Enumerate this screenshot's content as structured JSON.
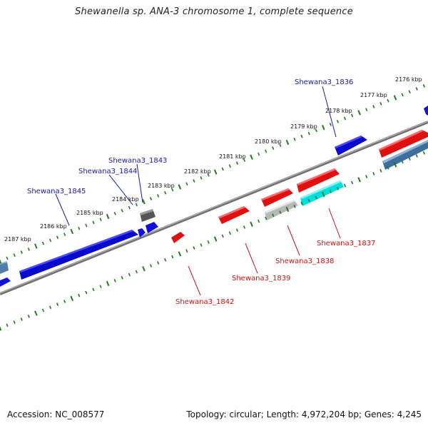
{
  "header": {
    "title": "Shewanella sp. ANA-3 chromosome 1, complete sequence"
  },
  "footer": {
    "accession": "Accession: NC_008577",
    "stats": "Topology: circular; Length: 4,972,204 bp; Genes: 4,245"
  },
  "colors": {
    "forward_label": "#1a1aa8",
    "reverse_label": "#cc1111",
    "tick_marks": "#1b7a1b",
    "backbone": "#8a8a8a"
  },
  "ticks": [
    {
      "label": "2176 kbp"
    },
    {
      "label": "2177 kbp"
    },
    {
      "label": "2178 kbp"
    },
    {
      "label": "2179 kbp"
    },
    {
      "label": "2180 kbp"
    },
    {
      "label": "2181 kbp"
    },
    {
      "label": "2182 kbp"
    },
    {
      "label": "2183 kbp"
    },
    {
      "label": "2184 kbp"
    },
    {
      "label": "2185 kbp"
    },
    {
      "label": "2186 kbp"
    },
    {
      "label": "2187 kbp"
    }
  ],
  "gene_labels": {
    "forward": [
      "Shewana3_1836",
      "Shewana3_1843",
      "Shewana3_1844",
      "Shewana3_1845"
    ],
    "reverse": [
      "Shewana3_1837",
      "Shewana3_1838",
      "Shewana3_1839",
      "Shewana3_1842"
    ]
  }
}
